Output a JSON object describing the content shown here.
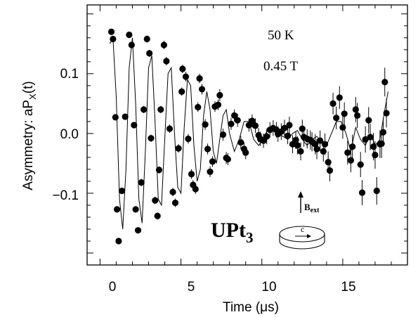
{
  "chart_data": {
    "type": "scatter",
    "xlabel": "Time (μs)",
    "ylabel": "Asymmetry: aP",
    "ylabel_sub": "X",
    "ylabel_suffix": "(t)",
    "xlim": [
      -0.8,
      19.0
    ],
    "ylim": [
      -0.22,
      0.215
    ],
    "x_ticks": [
      0,
      5,
      10,
      15
    ],
    "x_tick_labels": [
      "0",
      "5",
      "10",
      "15"
    ],
    "y_ticks": [
      -0.1,
      0.0,
      0.1
    ],
    "y_tick_labels": [
      "−0.1",
      "0.0",
      "0.1"
    ],
    "grid": false,
    "annotations": {
      "temperature": "50 K",
      "field": "0.45 T",
      "material": "UPt",
      "material_sub": "3",
      "bext": "B",
      "bext_sub": "ext",
      "axis_c": "c"
    },
    "series": [
      {
        "style": "points-with-errorbars-and-fit-line",
        "points": [
          {
            "x": 0.7,
            "y": 0.17,
            "e": 0.004
          },
          {
            "x": 0.8,
            "y": 0.158,
            "e": 0.004
          },
          {
            "x": 0.95,
            "y": 0.027,
            "e": 0.005
          },
          {
            "x": 1.05,
            "y": -0.127,
            "e": 0.005
          },
          {
            "x": 1.15,
            "y": -0.18,
            "e": 0.005
          },
          {
            "x": 1.35,
            "y": -0.096,
            "e": 0.005
          },
          {
            "x": 1.55,
            "y": 0.028,
            "e": 0.005
          },
          {
            "x": 1.8,
            "y": 0.165,
            "e": 0.005
          },
          {
            "x": 1.95,
            "y": 0.148,
            "e": 0.005
          },
          {
            "x": 2.1,
            "y": 0.014,
            "e": 0.005
          },
          {
            "x": 2.2,
            "y": -0.127,
            "e": 0.005
          },
          {
            "x": 2.35,
            "y": -0.162,
            "e": 0.005
          },
          {
            "x": 2.55,
            "y": -0.082,
            "e": 0.006
          },
          {
            "x": 2.7,
            "y": 0.04,
            "e": 0.006
          },
          {
            "x": 2.9,
            "y": 0.158,
            "e": 0.006
          },
          {
            "x": 3.05,
            "y": 0.134,
            "e": 0.006
          },
          {
            "x": 3.15,
            "y": -0.008,
            "e": 0.006
          },
          {
            "x": 3.4,
            "y": -0.112,
            "e": 0.006
          },
          {
            "x": 3.55,
            "y": -0.138,
            "e": 0.006
          },
          {
            "x": 3.65,
            "y": -0.061,
            "e": 0.006
          },
          {
            "x": 3.75,
            "y": 0.04,
            "e": 0.006
          },
          {
            "x": 3.95,
            "y": 0.148,
            "e": 0.007
          },
          {
            "x": 4.1,
            "y": 0.121,
            "e": 0.007
          },
          {
            "x": 4.3,
            "y": 0.008,
            "e": 0.007
          },
          {
            "x": 4.5,
            "y": -0.098,
            "e": 0.007
          },
          {
            "x": 4.65,
            "y": -0.116,
            "e": 0.007
          },
          {
            "x": 4.85,
            "y": -0.025,
            "e": 0.007
          },
          {
            "x": 5.05,
            "y": 0.07,
            "e": 0.007
          },
          {
            "x": 5.1,
            "y": 0.108,
            "e": 0.007
          },
          {
            "x": 5.3,
            "y": 0.095,
            "e": 0.008
          },
          {
            "x": 5.45,
            "y": -0.009,
            "e": 0.008
          },
          {
            "x": 5.65,
            "y": -0.068,
            "e": 0.008
          },
          {
            "x": 5.75,
            "y": -0.086,
            "e": 0.008
          },
          {
            "x": 5.9,
            "y": -0.093,
            "e": 0.008
          },
          {
            "x": 6.05,
            "y": 0.044,
            "e": 0.008
          },
          {
            "x": 6.15,
            "y": 0.092,
            "e": 0.008
          },
          {
            "x": 6.3,
            "y": 0.074,
            "e": 0.009
          },
          {
            "x": 6.5,
            "y": 0.015,
            "e": 0.009
          },
          {
            "x": 6.65,
            "y": -0.026,
            "e": 0.009
          },
          {
            "x": 6.8,
            "y": -0.064,
            "e": 0.009
          },
          {
            "x": 6.95,
            "y": -0.047,
            "e": 0.009
          },
          {
            "x": 7.1,
            "y": 0.045,
            "e": 0.009
          },
          {
            "x": 7.3,
            "y": 0.048,
            "e": 0.009
          },
          {
            "x": 7.4,
            "y": 0.064,
            "e": 0.01
          },
          {
            "x": 7.6,
            "y": -0.002,
            "e": 0.01
          },
          {
            "x": 7.8,
            "y": -0.041,
            "e": 0.01
          },
          {
            "x": 7.9,
            "y": -0.043,
            "e": 0.01
          },
          {
            "x": 8.1,
            "y": 0.016,
            "e": 0.01
          },
          {
            "x": 8.3,
            "y": 0.03,
            "e": 0.01
          },
          {
            "x": 8.5,
            "y": 0.022,
            "e": 0.011
          },
          {
            "x": 8.7,
            "y": -0.015,
            "e": 0.011
          },
          {
            "x": 8.9,
            "y": -0.026,
            "e": 0.011
          },
          {
            "x": 9.0,
            "y": -0.032,
            "e": 0.011
          },
          {
            "x": 9.2,
            "y": 0.014,
            "e": 0.011
          },
          {
            "x": 9.4,
            "y": 0.021,
            "e": 0.011
          },
          {
            "x": 9.6,
            "y": 0.013,
            "e": 0.012
          },
          {
            "x": 9.8,
            "y": -0.003,
            "e": 0.012
          },
          {
            "x": 9.9,
            "y": -0.009,
            "e": 0.012
          },
          {
            "x": 10.1,
            "y": -0.012,
            "e": 0.012
          },
          {
            "x": 10.3,
            "y": -0.005,
            "e": 0.013
          },
          {
            "x": 10.5,
            "y": 0.006,
            "e": 0.013
          },
          {
            "x": 10.7,
            "y": 0.009,
            "e": 0.013
          },
          {
            "x": 10.9,
            "y": 0.006,
            "e": 0.013
          },
          {
            "x": 11.0,
            "y": -0.001,
            "e": 0.013
          },
          {
            "x": 11.2,
            "y": 0.003,
            "e": 0.014
          },
          {
            "x": 11.4,
            "y": 0.009,
            "e": 0.014
          },
          {
            "x": 11.6,
            "y": -0.004,
            "e": 0.014
          },
          {
            "x": 11.7,
            "y": 0.014,
            "e": 0.014
          },
          {
            "x": 11.9,
            "y": -0.018,
            "e": 0.015
          },
          {
            "x": 12.1,
            "y": -0.011,
            "e": 0.015
          },
          {
            "x": 12.2,
            "y": -0.02,
            "e": 0.015
          },
          {
            "x": 12.4,
            "y": -0.03,
            "e": 0.015
          },
          {
            "x": 12.5,
            "y": 0.008,
            "e": 0.015
          },
          {
            "x": 12.6,
            "y": -0.006,
            "e": 0.016
          },
          {
            "x": 12.8,
            "y": -0.009,
            "e": 0.016
          },
          {
            "x": 13.0,
            "y": -0.011,
            "e": 0.016
          },
          {
            "x": 13.1,
            "y": -0.014,
            "e": 0.016
          },
          {
            "x": 13.3,
            "y": -0.018,
            "e": 0.017
          },
          {
            "x": 13.4,
            "y": -0.026,
            "e": 0.017
          },
          {
            "x": 13.6,
            "y": -0.012,
            "e": 0.017
          },
          {
            "x": 13.8,
            "y": -0.03,
            "e": 0.017
          },
          {
            "x": 13.9,
            "y": -0.018,
            "e": 0.018
          },
          {
            "x": 14.1,
            "y": -0.048,
            "e": 0.018
          },
          {
            "x": 14.2,
            "y": -0.062,
            "e": 0.018
          },
          {
            "x": 14.4,
            "y": 0.05,
            "e": 0.018
          },
          {
            "x": 14.6,
            "y": 0.026,
            "e": 0.019
          },
          {
            "x": 14.8,
            "y": 0.06,
            "e": 0.019
          },
          {
            "x": 15.0,
            "y": 0.01,
            "e": 0.019
          },
          {
            "x": 15.1,
            "y": 0.033,
            "e": 0.019
          },
          {
            "x": 15.3,
            "y": -0.032,
            "e": 0.02
          },
          {
            "x": 15.5,
            "y": -0.045,
            "e": 0.02
          },
          {
            "x": 15.6,
            "y": -0.022,
            "e": 0.02
          },
          {
            "x": 15.8,
            "y": 0.04,
            "e": 0.021
          },
          {
            "x": 15.9,
            "y": 0.03,
            "e": 0.021
          },
          {
            "x": 16.1,
            "y": -0.052,
            "e": 0.021
          },
          {
            "x": 16.2,
            "y": -0.099,
            "e": 0.021
          },
          {
            "x": 16.4,
            "y": -0.01,
            "e": 0.022
          },
          {
            "x": 16.6,
            "y": 0.022,
            "e": 0.022
          },
          {
            "x": 16.7,
            "y": -0.006,
            "e": 0.022
          },
          {
            "x": 16.9,
            "y": -0.022,
            "e": 0.023
          },
          {
            "x": 17.0,
            "y": -0.036,
            "e": 0.023
          },
          {
            "x": 17.1,
            "y": -0.096,
            "e": 0.023
          },
          {
            "x": 17.3,
            "y": -0.018,
            "e": 0.023
          },
          {
            "x": 17.4,
            "y": -0.017,
            "e": 0.024
          },
          {
            "x": 17.5,
            "y": 0.002,
            "e": 0.024
          },
          {
            "x": 17.6,
            "y": 0.086,
            "e": 0.024
          },
          {
            "x": 17.7,
            "y": 0.034,
            "e": 0.024
          }
        ],
        "fit": {
          "x": [
            0.6,
            0.8,
            1.0,
            1.2,
            1.4,
            1.6,
            1.8,
            2.0,
            2.2,
            2.4,
            2.6,
            2.8,
            3.0,
            3.2,
            3.4,
            3.6,
            3.8,
            4.0,
            4.2,
            4.4,
            4.6,
            4.8,
            5.0,
            5.2,
            5.4,
            5.6,
            5.8,
            6.0,
            6.2,
            6.4,
            6.6,
            6.8,
            7.0,
            7.2,
            7.4,
            7.6,
            7.8,
            8.0,
            8.3,
            8.6,
            8.9,
            9.2,
            9.5,
            9.8,
            10.1,
            10.4,
            10.7,
            11.0,
            11.3,
            11.6,
            11.9,
            12.2,
            12.5,
            12.8,
            13.1,
            13.4,
            13.7,
            14.0,
            14.3,
            14.6,
            14.9,
            15.2,
            15.5,
            15.8,
            16.1,
            16.4,
            16.7,
            17.0,
            17.3,
            17.6,
            17.8
          ],
          "y": [
            0.15,
            0.16,
            0.06,
            -0.11,
            -0.16,
            -0.06,
            0.11,
            0.16,
            0.05,
            -0.11,
            -0.15,
            -0.03,
            0.11,
            0.13,
            0.02,
            -0.11,
            -0.12,
            -0.01,
            0.1,
            0.11,
            0.0,
            -0.09,
            -0.1,
            0.01,
            0.09,
            0.08,
            -0.02,
            -0.08,
            -0.06,
            0.03,
            0.07,
            0.04,
            -0.03,
            -0.05,
            -0.01,
            0.03,
            0.04,
            0.0,
            -0.03,
            -0.01,
            0.02,
            0.02,
            -0.01,
            -0.02,
            -0.01,
            0.01,
            0.01,
            0.0,
            -0.005,
            -0.01,
            0.0,
            0.005,
            -0.01,
            -0.02,
            -0.01,
            -0.005,
            -0.015,
            -0.02,
            0.0,
            0.02,
            0.02,
            0.0,
            -0.03,
            0.01,
            -0.01,
            -0.02,
            0.0,
            -0.02,
            -0.01,
            0.04,
            0.07
          ]
        }
      }
    ]
  }
}
